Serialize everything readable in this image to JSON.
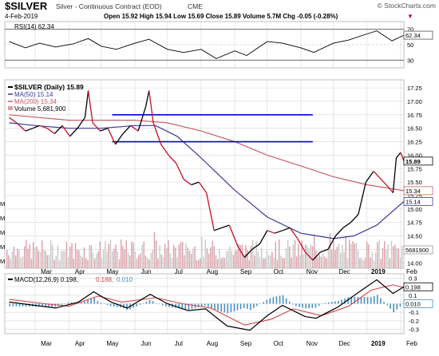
{
  "header": {
    "symbol": "$SILVER",
    "name": "Silver - Continuous Contract (EOD)",
    "exchange": "CME",
    "date": "4-Feb-2019",
    "quote": "Open 15.92  High 15.94  Low 15.69  Close 15.89  Volume 5.7M  Chg -0.05 (-0.28%)",
    "chg_marker": "▼",
    "watermark": "© StockCharts.com"
  },
  "colors": {
    "price_up": "#000000",
    "price_down": "#c0102a",
    "ma50": "#3a3a9a",
    "ma200": "#c8606c",
    "hline": "#0000e0",
    "volume": "#d8a0a8",
    "volume_down": "#c8c8c8",
    "macd_line": "#000000",
    "signal_line": "#d04848",
    "histogram": "#4a90c0",
    "rsi_line": "#000000",
    "grid": "#d8d8d8"
  },
  "x_axis": {
    "ticks": [
      "Mar",
      "Apr",
      "May",
      "Jun",
      "Jul",
      "Aug",
      "Sep",
      "Oct",
      "Nov",
      "Dec",
      "2019",
      "Feb"
    ]
  },
  "rsi_panel": {
    "label": "RSI(14) 62.34",
    "ticks": [
      "70",
      "50",
      "30"
    ],
    "value_tag": "62.34"
  },
  "price_panel": {
    "legend": [
      "$SILVER (Daily) 15.89",
      "MA(50) 15.14",
      "MA(200) 15.34",
      "Volume 5,681,900"
    ],
    "y_ticks": [
      "17.25",
      "17.00",
      "16.75",
      "16.50",
      "16.25",
      "16.00",
      "15.75",
      "15.50",
      "15.25",
      "15.00",
      "14.75",
      "14.50",
      "14.25",
      "14.00"
    ],
    "vol_ticks": [
      "M",
      "M",
      "M",
      "M",
      "M"
    ],
    "tags": {
      "close": "15.89",
      "ma200": "15.34",
      "ma50": "15.14",
      "volume": "5681900"
    }
  },
  "macd_panel": {
    "label_main": "MACD(12,26,9) 0.198,",
    "label_signal": "0.188,",
    "label_hist": "0.010",
    "y_ticks": [
      "0.3",
      "0.2",
      "0.1",
      "0.0",
      "-0.1",
      "-0.2",
      "-0.3"
    ],
    "tags": {
      "macd": "0.198",
      "hist": "0.010"
    }
  },
  "chart_data": {
    "type": "line",
    "title": "$SILVER Silver - Continuous Contract (EOD) CME",
    "x_range": [
      "2018-02-01",
      "2019-02-04"
    ],
    "price": {
      "name": "$SILVER (Daily)",
      "points": [
        [
          "2018-02-05",
          16.7
        ],
        [
          "2018-02-12",
          16.6
        ],
        [
          "2018-02-20",
          16.45
        ],
        [
          "2018-02-27",
          16.5
        ],
        [
          "2018-03-05",
          16.55
        ],
        [
          "2018-03-12",
          16.5
        ],
        [
          "2018-03-19",
          16.4
        ],
        [
          "2018-03-26",
          16.55
        ],
        [
          "2018-04-02",
          16.35
        ],
        [
          "2018-04-09",
          16.5
        ],
        [
          "2018-04-16",
          16.7
        ],
        [
          "2018-04-19",
          17.2
        ],
        [
          "2018-04-23",
          16.6
        ],
        [
          "2018-04-30",
          16.45
        ],
        [
          "2018-05-07",
          16.5
        ],
        [
          "2018-05-14",
          16.2
        ],
        [
          "2018-05-21",
          16.4
        ],
        [
          "2018-05-28",
          16.55
        ],
        [
          "2018-06-04",
          16.45
        ],
        [
          "2018-06-11",
          16.9
        ],
        [
          "2018-06-14",
          17.2
        ],
        [
          "2018-06-18",
          16.6
        ],
        [
          "2018-06-25",
          16.2
        ],
        [
          "2018-07-02",
          16.0
        ],
        [
          "2018-07-09",
          15.85
        ],
        [
          "2018-07-16",
          15.55
        ],
        [
          "2018-07-23",
          15.45
        ],
        [
          "2018-07-30",
          15.5
        ],
        [
          "2018-08-06",
          15.3
        ],
        [
          "2018-08-13",
          14.6
        ],
        [
          "2018-08-20",
          14.65
        ],
        [
          "2018-08-27",
          14.7
        ],
        [
          "2018-09-04",
          14.3
        ],
        [
          "2018-09-10",
          14.1
        ],
        [
          "2018-09-17",
          14.25
        ],
        [
          "2018-09-24",
          14.35
        ],
        [
          "2018-10-01",
          14.6
        ],
        [
          "2018-10-08",
          14.55
        ],
        [
          "2018-10-15",
          14.6
        ],
        [
          "2018-10-22",
          14.65
        ],
        [
          "2018-10-29",
          14.45
        ],
        [
          "2018-11-05",
          14.2
        ],
        [
          "2018-11-12",
          14.05
        ],
        [
          "2018-11-19",
          14.2
        ],
        [
          "2018-11-26",
          14.25
        ],
        [
          "2018-12-03",
          14.5
        ],
        [
          "2018-12-10",
          14.65
        ],
        [
          "2018-12-17",
          14.75
        ],
        [
          "2018-12-24",
          14.9
        ],
        [
          "2018-12-31",
          15.5
        ],
        [
          "2019-01-07",
          15.7
        ],
        [
          "2019-01-14",
          15.55
        ],
        [
          "2019-01-21",
          15.4
        ],
        [
          "2019-01-25",
          15.3
        ],
        [
          "2019-01-28",
          15.95
        ],
        [
          "2019-02-01",
          16.05
        ],
        [
          "2019-02-04",
          15.89
        ]
      ]
    },
    "ma50": {
      "name": "MA(50)",
      "points": [
        [
          "2018-02-05",
          16.6
        ],
        [
          "2018-03-01",
          16.55
        ],
        [
          "2018-04-01",
          16.5
        ],
        [
          "2018-05-01",
          16.5
        ],
        [
          "2018-06-01",
          16.55
        ],
        [
          "2018-06-20",
          16.55
        ],
        [
          "2018-07-10",
          16.35
        ],
        [
          "2018-08-01",
          15.95
        ],
        [
          "2018-09-01",
          15.35
        ],
        [
          "2018-10-01",
          14.85
        ],
        [
          "2018-11-01",
          14.55
        ],
        [
          "2018-12-01",
          14.45
        ],
        [
          "2018-12-20",
          14.5
        ],
        [
          "2019-01-10",
          14.7
        ],
        [
          "2019-02-04",
          15.14
        ]
      ]
    },
    "ma200": {
      "name": "MA(200)",
      "points": [
        [
          "2018-02-05",
          16.75
        ],
        [
          "2018-04-01",
          16.65
        ],
        [
          "2018-06-01",
          16.65
        ],
        [
          "2018-07-01",
          16.6
        ],
        [
          "2018-08-01",
          16.45
        ],
        [
          "2018-09-01",
          16.25
        ],
        [
          "2018-10-01",
          16.0
        ],
        [
          "2018-11-01",
          15.8
        ],
        [
          "2018-12-01",
          15.6
        ],
        [
          "2019-01-01",
          15.45
        ],
        [
          "2019-02-04",
          15.34
        ]
      ]
    },
    "horizontal_lines": [
      {
        "from": "2018-05-11",
        "to": "2018-11-12",
        "y": 16.75
      },
      {
        "from": "2018-05-11",
        "to": "2018-11-12",
        "y": 16.25
      }
    ],
    "rsi": {
      "name": "RSI(14)",
      "ylim": [
        20,
        80
      ],
      "points": [
        [
          "2018-02-05",
          54
        ],
        [
          "2018-02-20",
          46
        ],
        [
          "2018-03-05",
          52
        ],
        [
          "2018-03-20",
          47
        ],
        [
          "2018-04-05",
          51
        ],
        [
          "2018-04-19",
          58
        ],
        [
          "2018-05-01",
          48
        ],
        [
          "2018-05-15",
          44
        ],
        [
          "2018-06-01",
          52
        ],
        [
          "2018-06-14",
          57
        ],
        [
          "2018-07-01",
          44
        ],
        [
          "2018-07-16",
          40
        ],
        [
          "2018-08-01",
          44
        ],
        [
          "2018-08-15",
          32
        ],
        [
          "2018-09-01",
          42
        ],
        [
          "2018-09-12",
          36
        ],
        [
          "2018-10-01",
          54
        ],
        [
          "2018-10-15",
          52
        ],
        [
          "2018-11-01",
          46
        ],
        [
          "2018-11-13",
          40
        ],
        [
          "2018-12-01",
          52
        ],
        [
          "2018-12-15",
          56
        ],
        [
          "2019-01-01",
          64
        ],
        [
          "2019-01-10",
          68
        ],
        [
          "2019-01-24",
          55
        ],
        [
          "2019-02-04",
          62.34
        ]
      ]
    },
    "volume": {
      "name": "Volume",
      "unit": "contracts",
      "last": 5681900
    },
    "macd": {
      "name": "MACD(12,26,9)",
      "ylim": [
        -0.35,
        0.35
      ],
      "macd": [
        [
          "2018-02-05",
          0.02
        ],
        [
          "2018-03-01",
          -0.02
        ],
        [
          "2018-03-20",
          -0.05
        ],
        [
          "2018-04-10",
          0.02
        ],
        [
          "2018-04-24",
          0.14
        ],
        [
          "2018-05-10",
          0.02
        ],
        [
          "2018-05-25",
          -0.05
        ],
        [
          "2018-06-15",
          0.11
        ],
        [
          "2018-07-01",
          0.0
        ],
        [
          "2018-07-20",
          -0.08
        ],
        [
          "2018-08-05",
          -0.06
        ],
        [
          "2018-08-25",
          -0.26
        ],
        [
          "2018-09-15",
          -0.31
        ],
        [
          "2018-10-01",
          -0.14
        ],
        [
          "2018-10-15",
          -0.02
        ],
        [
          "2018-11-05",
          -0.15
        ],
        [
          "2018-11-15",
          -0.17
        ],
        [
          "2018-12-05",
          -0.04
        ],
        [
          "2018-12-25",
          0.14
        ],
        [
          "2019-01-10",
          0.28
        ],
        [
          "2019-01-25",
          0.12
        ],
        [
          "2019-02-04",
          0.198
        ]
      ],
      "signal": [
        [
          "2018-02-05",
          0.05
        ],
        [
          "2018-03-10",
          0.0
        ],
        [
          "2018-04-01",
          -0.03
        ],
        [
          "2018-04-28",
          0.09
        ],
        [
          "2018-05-20",
          0.02
        ],
        [
          "2018-06-20",
          0.07
        ],
        [
          "2018-07-15",
          0.0
        ],
        [
          "2018-08-10",
          -0.05
        ],
        [
          "2018-09-10",
          -0.25
        ],
        [
          "2018-10-05",
          -0.18
        ],
        [
          "2018-10-25",
          -0.06
        ],
        [
          "2018-11-20",
          -0.14
        ],
        [
          "2018-12-15",
          -0.03
        ],
        [
          "2019-01-05",
          0.16
        ],
        [
          "2019-01-25",
          0.22
        ],
        [
          "2019-02-04",
          0.188
        ]
      ],
      "histogram_last": 0.01
    }
  }
}
